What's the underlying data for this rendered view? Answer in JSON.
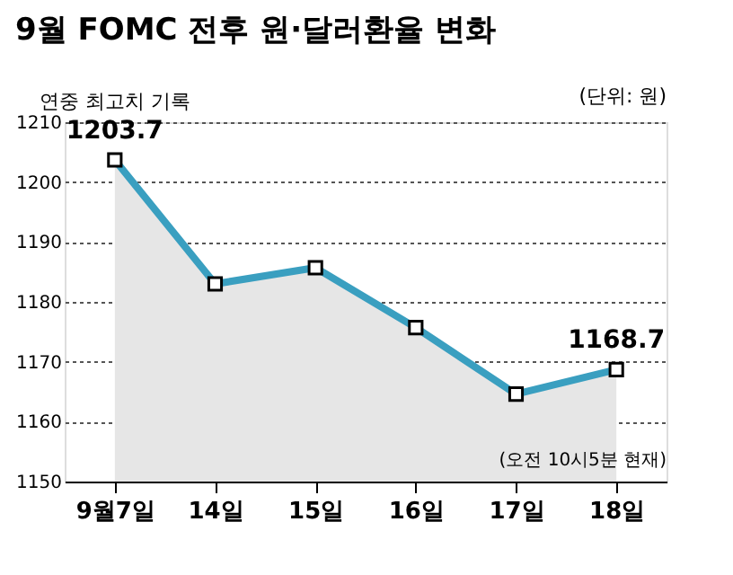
{
  "chart_data": {
    "type": "area",
    "title": "9월 FOMC 전후 원·달러환율 변화",
    "subtitle": "(단위: 원)",
    "categories": [
      "9월7일",
      "14일",
      "15일",
      "16일",
      "17일",
      "18일"
    ],
    "series": [
      {
        "color": "#3a9fc0",
        "values": [
          1203.7,
          1183.0,
          1185.7,
          1175.7,
          1164.6,
          1168.7
        ],
        "value_labels": [
          "1203.7",
          null,
          null,
          null,
          null,
          "1168.7"
        ]
      }
    ],
    "ylim": [
      1150,
      1210
    ],
    "yticks": [
      1150,
      1160,
      1170,
      1180,
      1190,
      1200,
      1210
    ],
    "grid": "y",
    "marker": "square",
    "annotations": [
      {
        "text": "연중 최고치 기록",
        "x": "9월7일",
        "y": 1203.7
      },
      "(오전 10시5분 현재)"
    ]
  }
}
